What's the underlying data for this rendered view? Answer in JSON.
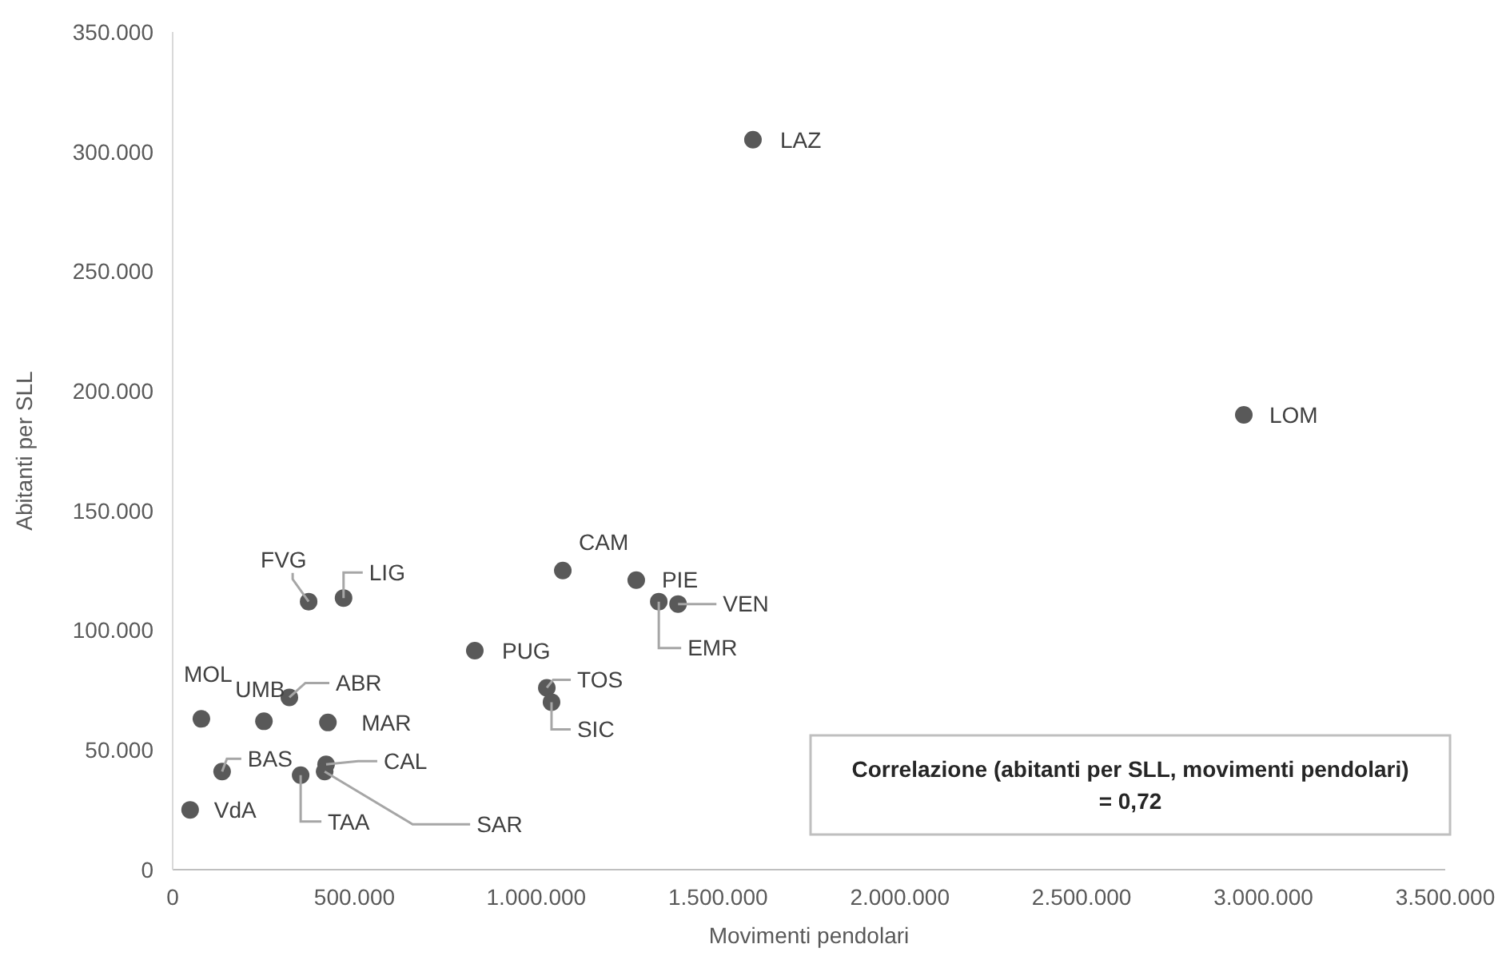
{
  "chart_data": {
    "type": "scatter",
    "xlabel": "Movimenti pendolari",
    "ylabel": "Abitanti per SLL",
    "marker": "circle",
    "grid": false,
    "xlim": [
      0,
      3500000
    ],
    "ylim": [
      0,
      350000
    ],
    "xticks": [
      0,
      {
        "value": 500000,
        "label": "500.000"
      },
      {
        "value": 1000000,
        "label": "1.000.000"
      },
      {
        "value": 1500000,
        "label": "1.500.000"
      },
      {
        "value": 2000000,
        "label": "2.000.000"
      },
      {
        "value": 2500000,
        "label": "2.500.000"
      },
      {
        "value": 3000000,
        "label": "3.000.000"
      },
      {
        "value": 3500000,
        "label": "3.500.000"
      }
    ],
    "yticks": [
      0,
      {
        "value": 50000,
        "label": "50.000"
      },
      {
        "value": 100000,
        "label": "100.000"
      },
      {
        "value": 150000,
        "label": "150.000"
      },
      {
        "value": 200000,
        "label": "200.000"
      },
      {
        "value": 250000,
        "label": "250.000"
      },
      {
        "value": 300000,
        "label": "300.000"
      },
      {
        "value": 350000,
        "label": "350.000"
      }
    ],
    "series": [
      {
        "color": "#595959",
        "x": [
          1596000,
          2946000,
          1073000,
          1275000,
          1337000,
          1390000,
          831000,
          1029000,
          1042000,
          374000,
          470000,
          79000,
          251000,
          321000,
          427000,
          136000,
          422000,
          418000,
          352000,
          48000
        ],
        "values": [
          305000,
          190000,
          125000,
          121000,
          112000,
          111000,
          91500,
          76000,
          70000,
          112000,
          113500,
          63000,
          62000,
          72000,
          61500,
          41000,
          44000,
          41000,
          39500,
          25000
        ]
      }
    ],
    "annotations": [
      {
        "text": "LAZ",
        "x": 1596000,
        "y": 305000
      },
      {
        "text": "LOM",
        "x": 2946000,
        "y": 190000
      },
      {
        "text": "CAM",
        "x": 1073000,
        "y": 125000
      },
      {
        "text": "PIE",
        "x": 1275000,
        "y": 121000
      },
      {
        "text": "EMR",
        "x": 1337000,
        "y": 112000
      },
      {
        "text": "VEN",
        "x": 1390000,
        "y": 111000
      },
      {
        "text": "PUG",
        "x": 831000,
        "y": 91500
      },
      {
        "text": "TOS",
        "x": 1029000,
        "y": 76000
      },
      {
        "text": "SIC",
        "x": 1042000,
        "y": 70000
      },
      {
        "text": "FVG",
        "x": 374000,
        "y": 112000
      },
      {
        "text": "LIG",
        "x": 470000,
        "y": 113500
      },
      {
        "text": "MOL",
        "x": 79000,
        "y": 63000
      },
      {
        "text": "UMB",
        "x": 251000,
        "y": 62000
      },
      {
        "text": "ABR",
        "x": 321000,
        "y": 72000
      },
      {
        "text": "MAR",
        "x": 427000,
        "y": 61500
      },
      {
        "text": "BAS",
        "x": 136000,
        "y": 41000
      },
      {
        "text": "CAL",
        "x": 422000,
        "y": 44000
      },
      {
        "text": "SAR",
        "x": 418000,
        "y": 41000
      },
      {
        "text": "TAA",
        "x": 352000,
        "y": 39500
      },
      {
        "text": "VdA",
        "x": 48000,
        "y": 25000
      },
      "Correlazione (abitanti per SLL, movimenti pendolari)\n= 0,72"
    ]
  }
}
